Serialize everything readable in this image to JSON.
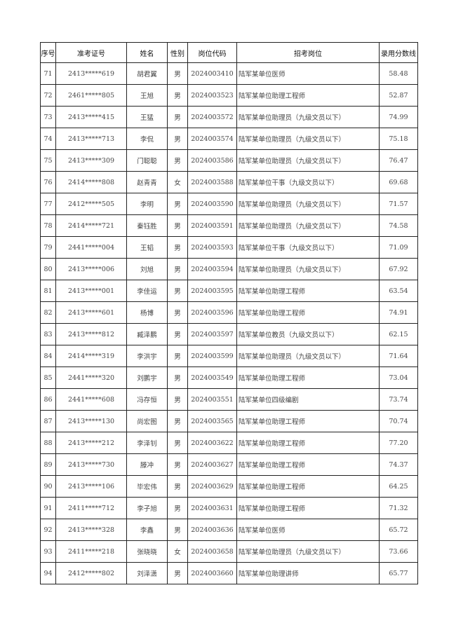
{
  "headers": [
    "序号",
    "准考证号",
    "姓名",
    "性别",
    "岗位代码",
    "招考岗位",
    "录用分数线"
  ],
  "rows": [
    [
      "71",
      "2413*****619",
      "胡君翼",
      "男",
      "2024003410",
      "陆军某单位医师",
      "58.48"
    ],
    [
      "72",
      "2461*****805",
      "王旭",
      "男",
      "2024003523",
      "陆军某单位助理工程师",
      "52.87"
    ],
    [
      "73",
      "2413*****415",
      "王猛",
      "男",
      "2024003572",
      "陆军某单位助理员（九级文员以下）",
      "74.99"
    ],
    [
      "74",
      "2413*****713",
      "李侃",
      "男",
      "2024003574",
      "陆军某单位助理员（九级文员以下）",
      "75.18"
    ],
    [
      "75",
      "2413*****309",
      "门聪聪",
      "男",
      "2024003586",
      "陆军某单位助理员（九级文员以下）",
      "76.47"
    ],
    [
      "76",
      "2414*****808",
      "赵青青",
      "女",
      "2024003588",
      "陆军某单位干事（九级文员以下）",
      "69.68"
    ],
    [
      "77",
      "2412*****505",
      "李明",
      "男",
      "2024003590",
      "陆军某单位助理员（九级文员以下）",
      "71.57"
    ],
    [
      "78",
      "2414*****721",
      "秦钰胜",
      "男",
      "2024003591",
      "陆军某单位助理员（九级文员以下）",
      "74.58"
    ],
    [
      "79",
      "2441*****004",
      "王韬",
      "男",
      "2024003593",
      "陆军某单位干事（九级文员以下）",
      "71.09"
    ],
    [
      "80",
      "2413*****006",
      "刘旭",
      "男",
      "2024003594",
      "陆军某单位助理员（九级文员以下）",
      "67.92"
    ],
    [
      "81",
      "2413*****001",
      "李佳运",
      "男",
      "2024003595",
      "陆军某单位助理工程师",
      "63.54"
    ],
    [
      "82",
      "2413*****601",
      "杨博",
      "男",
      "2024003596",
      "陆军某单位助理工程师",
      "74.91"
    ],
    [
      "83",
      "2413*****812",
      "臧泽鹏",
      "男",
      "2024003597",
      "陆军某单位教员（九级文员以下）",
      "62.15"
    ],
    [
      "84",
      "2414*****319",
      "李洪宇",
      "男",
      "2024003599",
      "陆军某单位助理员（九级文员以下）",
      "71.64"
    ],
    [
      "85",
      "2441*****320",
      "刘鹏宇",
      "男",
      "2024003549",
      "陆军某单位助理工程师",
      "73.04"
    ],
    [
      "86",
      "2441*****608",
      "冯存恒",
      "男",
      "2024003551",
      "陆军某单位四级编剧",
      "73.74"
    ],
    [
      "87",
      "2413*****130",
      "尚宏图",
      "男",
      "2024003565",
      "陆军某单位助理工程师",
      "70.74"
    ],
    [
      "88",
      "2413*****212",
      "李泽钊",
      "男",
      "2024003622",
      "陆军某单位助理工程师",
      "77.20"
    ],
    [
      "89",
      "2413*****730",
      "滕冲",
      "男",
      "2024003627",
      "陆军某单位助理工程师",
      "74.37"
    ],
    [
      "90",
      "2413*****106",
      "毕宏伟",
      "男",
      "2024003629",
      "陆军某单位助理工程师",
      "64.25"
    ],
    [
      "91",
      "2411*****712",
      "李子旭",
      "男",
      "2024003631",
      "陆军某单位助理工程师",
      "71.32"
    ],
    [
      "92",
      "2413*****328",
      "李鑫",
      "男",
      "2024003636",
      "陆军某单位医师",
      "65.72"
    ],
    [
      "93",
      "2411*****218",
      "张晓晓",
      "女",
      "2024003658",
      "陆军某单位助理员（九级文员以下）",
      "73.66"
    ],
    [
      "94",
      "2412*****802",
      "刘泽潇",
      "男",
      "2024003660",
      "陆军某单位助理讲师",
      "65.77"
    ]
  ]
}
